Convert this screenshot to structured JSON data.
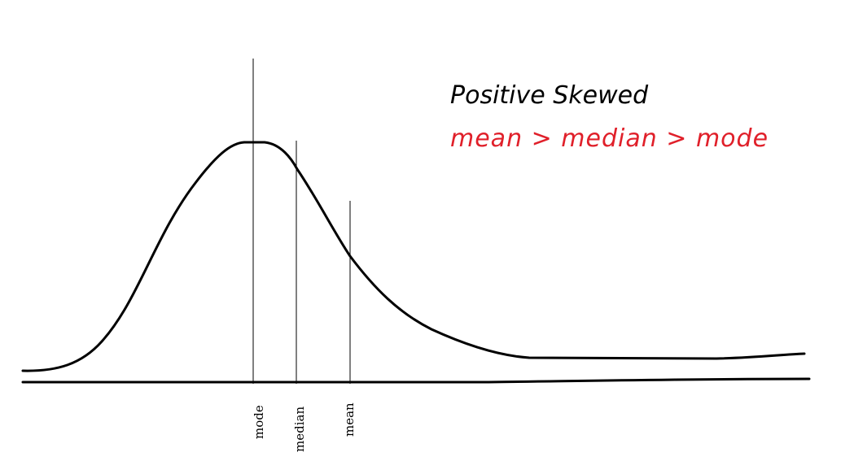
{
  "title": "Positive Skewed",
  "relation": "mean > median > mode",
  "markers": {
    "mode": "mode",
    "median": "median",
    "mean": "mean"
  },
  "colors": {
    "curve": "#000000",
    "title": "#000000",
    "relation": "#e0202a"
  }
}
